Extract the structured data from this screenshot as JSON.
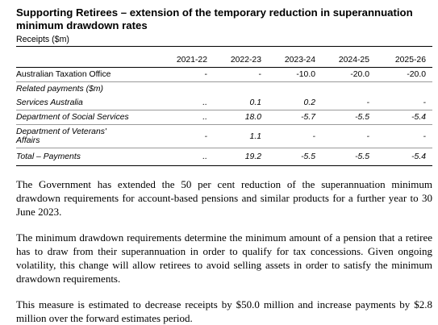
{
  "title": "Supporting Retirees – extension of the temporary reduction in superannuation minimum drawdown rates",
  "subtitle": "Receipts ($m)",
  "table": {
    "years": [
      "2021-22",
      "2022-23",
      "2023-24",
      "2024-25",
      "2025-26"
    ],
    "rows": [
      {
        "label": "Australian Taxation Office",
        "values": [
          "-",
          "-",
          "-10.0",
          "-20.0",
          "-20.0"
        ]
      },
      {
        "label": "Related payments ($m)",
        "values": [
          "",
          "",
          "",
          "",
          ""
        ]
      },
      {
        "label": "Services Australia",
        "values": [
          "..",
          "0.1",
          "0.2",
          "-",
          "-"
        ]
      },
      {
        "label": "Department of Social Services",
        "values": [
          "..",
          "18.0",
          "-5.7",
          "-5.5",
          "-5.4"
        ]
      },
      {
        "label": "Department of Veterans' Affairs",
        "values": [
          "-",
          "1.1",
          "-",
          "-",
          "-"
        ]
      },
      {
        "label": "Total – Payments",
        "values": [
          "..",
          "19.2",
          "-5.5",
          "-5.5",
          "-5.4"
        ]
      }
    ]
  },
  "paragraphs": [
    "The Government has extended the 50 per cent reduction of the superannuation minimum drawdown requirements for account-based pensions and similar products for a further year to 30 June 2023.",
    "The minimum drawdown requirements determine the minimum amount of a pension that a retiree has to draw from their superannuation in order to qualify for tax concessions. Given ongoing volatility, this change will allow retirees to avoid selling assets in order to satisfy the minimum drawdown requirements.",
    "This measure is estimated to decrease receipts by $50.0 million and increase payments by $2.8 million over the forward estimates period."
  ]
}
